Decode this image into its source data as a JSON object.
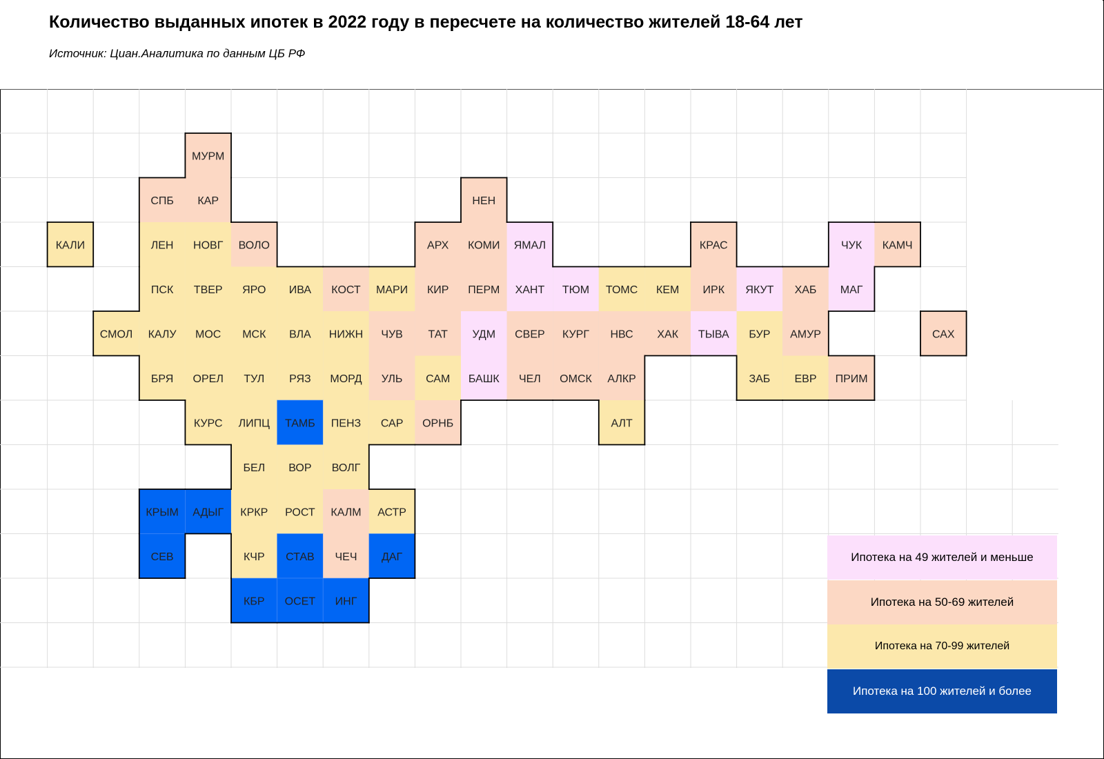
{
  "title": "Количество выданных ипотек в 2022 году в пересчете на количество жителей 18-64 лет",
  "source": "Источник: Циан.Аналитика по данным ЦБ РФ",
  "colors": {
    "lt50": "#fce0fc",
    "c50_69": "#fcd8c4",
    "c70_99": "#fce8ac",
    "ge100": "#0066f4",
    "legend_ge100": "#0b4aa8",
    "grid": "#dddddd",
    "border": "#000000"
  },
  "legend": [
    {
      "label": "Ипотека  на 49 жителей и меньше",
      "category": "lt50"
    },
    {
      "label": "Ипотека на 50-69 жителей",
      "category": "c50_69"
    },
    {
      "label": "Ипотека на 70-99 жителей",
      "category": "c70_99"
    },
    {
      "label": "Ипотека на 100 жителей и более",
      "category": "ge100"
    }
  ],
  "regions": [
    {
      "label": "МУРМ",
      "row": 0,
      "col": 4,
      "category": "c50_69"
    },
    {
      "label": "СПБ",
      "row": 1,
      "col": 3,
      "category": "c50_69"
    },
    {
      "label": "КАР",
      "row": 1,
      "col": 4,
      "category": "c50_69"
    },
    {
      "label": "НЕН",
      "row": 1,
      "col": 10,
      "category": "c50_69"
    },
    {
      "label": "КАЛИ",
      "row": 2,
      "col": 1,
      "category": "c70_99"
    },
    {
      "label": "ЛЕН",
      "row": 2,
      "col": 3,
      "category": "c70_99"
    },
    {
      "label": "НОВГ",
      "row": 2,
      "col": 4,
      "category": "c70_99"
    },
    {
      "label": "ВОЛО",
      "row": 2,
      "col": 5,
      "category": "c50_69"
    },
    {
      "label": "АРХ",
      "row": 2,
      "col": 9,
      "category": "c50_69"
    },
    {
      "label": "КОМИ",
      "row": 2,
      "col": 10,
      "category": "c50_69"
    },
    {
      "label": "ЯМАЛ",
      "row": 2,
      "col": 11,
      "category": "lt50"
    },
    {
      "label": "КРАС",
      "row": 2,
      "col": 15,
      "category": "c50_69"
    },
    {
      "label": "ЧУК",
      "row": 2,
      "col": 18,
      "category": "lt50"
    },
    {
      "label": "КАМЧ",
      "row": 2,
      "col": 19,
      "category": "c50_69"
    },
    {
      "label": "ПСК",
      "row": 3,
      "col": 3,
      "category": "c70_99"
    },
    {
      "label": "ТВЕР",
      "row": 3,
      "col": 4,
      "category": "c70_99"
    },
    {
      "label": "ЯРО",
      "row": 3,
      "col": 5,
      "category": "c70_99"
    },
    {
      "label": "ИВА",
      "row": 3,
      "col": 6,
      "category": "c70_99"
    },
    {
      "label": "КОСТ",
      "row": 3,
      "col": 7,
      "category": "c50_69"
    },
    {
      "label": "МАРИ",
      "row": 3,
      "col": 8,
      "category": "c70_99"
    },
    {
      "label": "КИР",
      "row": 3,
      "col": 9,
      "category": "c50_69"
    },
    {
      "label": "ПЕРМ",
      "row": 3,
      "col": 10,
      "category": "c50_69"
    },
    {
      "label": "ХАНТ",
      "row": 3,
      "col": 11,
      "category": "lt50"
    },
    {
      "label": "ТЮМ",
      "row": 3,
      "col": 12,
      "category": "lt50"
    },
    {
      "label": "ТОМС",
      "row": 3,
      "col": 13,
      "category": "c70_99"
    },
    {
      "label": "КЕМ",
      "row": 3,
      "col": 14,
      "category": "c70_99"
    },
    {
      "label": "ИРК",
      "row": 3,
      "col": 15,
      "category": "c50_69"
    },
    {
      "label": "ЯКУТ",
      "row": 3,
      "col": 16,
      "category": "lt50"
    },
    {
      "label": "ХАБ",
      "row": 3,
      "col": 17,
      "category": "c50_69"
    },
    {
      "label": "МАГ",
      "row": 3,
      "col": 18,
      "category": "lt50"
    },
    {
      "label": "СМОЛ",
      "row": 4,
      "col": 2,
      "category": "c70_99"
    },
    {
      "label": "КАЛУ",
      "row": 4,
      "col": 3,
      "category": "c70_99"
    },
    {
      "label": "МОС",
      "row": 4,
      "col": 4,
      "category": "c70_99"
    },
    {
      "label": "МСК",
      "row": 4,
      "col": 5,
      "category": "c70_99"
    },
    {
      "label": "ВЛА",
      "row": 4,
      "col": 6,
      "category": "c70_99"
    },
    {
      "label": "НИЖН",
      "row": 4,
      "col": 7,
      "category": "c70_99"
    },
    {
      "label": "ЧУВ",
      "row": 4,
      "col": 8,
      "category": "c50_69"
    },
    {
      "label": "ТАТ",
      "row": 4,
      "col": 9,
      "category": "c50_69"
    },
    {
      "label": "УДМ",
      "row": 4,
      "col": 10,
      "category": "lt50"
    },
    {
      "label": "СВЕР",
      "row": 4,
      "col": 11,
      "category": "c50_69"
    },
    {
      "label": "КУРГ",
      "row": 4,
      "col": 12,
      "category": "c50_69"
    },
    {
      "label": "НВС",
      "row": 4,
      "col": 13,
      "category": "c50_69"
    },
    {
      "label": "ХАК",
      "row": 4,
      "col": 14,
      "category": "c50_69"
    },
    {
      "label": "ТЫВА",
      "row": 4,
      "col": 15,
      "category": "lt50"
    },
    {
      "label": "БУР",
      "row": 4,
      "col": 16,
      "category": "c70_99"
    },
    {
      "label": "АМУР",
      "row": 4,
      "col": 17,
      "category": "c50_69"
    },
    {
      "label": "САХ",
      "row": 4,
      "col": 20,
      "category": "c50_69"
    },
    {
      "label": "БРЯ",
      "row": 5,
      "col": 3,
      "category": "c70_99"
    },
    {
      "label": "ОРЕЛ",
      "row": 5,
      "col": 4,
      "category": "c70_99"
    },
    {
      "label": "ТУЛ",
      "row": 5,
      "col": 5,
      "category": "c70_99"
    },
    {
      "label": "РЯЗ",
      "row": 5,
      "col": 6,
      "category": "c70_99"
    },
    {
      "label": "МОРД",
      "row": 5,
      "col": 7,
      "category": "c70_99"
    },
    {
      "label": "УЛЬ",
      "row": 5,
      "col": 8,
      "category": "c50_69"
    },
    {
      "label": "САМ",
      "row": 5,
      "col": 9,
      "category": "c70_99"
    },
    {
      "label": "БАШК",
      "row": 5,
      "col": 10,
      "category": "lt50"
    },
    {
      "label": "ЧЕЛ",
      "row": 5,
      "col": 11,
      "category": "c50_69"
    },
    {
      "label": "ОМСК",
      "row": 5,
      "col": 12,
      "category": "c50_69"
    },
    {
      "label": "АЛКР",
      "row": 5,
      "col": 13,
      "category": "c50_69"
    },
    {
      "label": "ЗАБ",
      "row": 5,
      "col": 16,
      "category": "c70_99"
    },
    {
      "label": "ЕВР",
      "row": 5,
      "col": 17,
      "category": "c70_99"
    },
    {
      "label": "ПРИМ",
      "row": 5,
      "col": 18,
      "category": "c50_69"
    },
    {
      "label": "КУРС",
      "row": 6,
      "col": 4,
      "category": "c70_99"
    },
    {
      "label": "ЛИПЦ",
      "row": 6,
      "col": 5,
      "category": "c70_99"
    },
    {
      "label": "ТАМБ",
      "row": 6,
      "col": 6,
      "category": "ge100"
    },
    {
      "label": "ПЕНЗ",
      "row": 6,
      "col": 7,
      "category": "c70_99"
    },
    {
      "label": "САР",
      "row": 6,
      "col": 8,
      "category": "c70_99"
    },
    {
      "label": "ОРНБ",
      "row": 6,
      "col": 9,
      "category": "c50_69"
    },
    {
      "label": "АЛТ",
      "row": 6,
      "col": 13,
      "category": "c70_99"
    },
    {
      "label": "БЕЛ",
      "row": 7,
      "col": 5,
      "category": "c70_99"
    },
    {
      "label": "ВОР",
      "row": 7,
      "col": 6,
      "category": "c70_99"
    },
    {
      "label": "ВОЛГ",
      "row": 7,
      "col": 7,
      "category": "c70_99"
    },
    {
      "label": "КРЫМ",
      "row": 8,
      "col": 3,
      "category": "ge100"
    },
    {
      "label": "АДЫГ",
      "row": 8,
      "col": 4,
      "category": "ge100"
    },
    {
      "label": "КРКР",
      "row": 8,
      "col": 5,
      "category": "c70_99"
    },
    {
      "label": "РОСТ",
      "row": 8,
      "col": 6,
      "category": "c70_99"
    },
    {
      "label": "КАЛМ",
      "row": 8,
      "col": 7,
      "category": "c50_69"
    },
    {
      "label": "АСТР",
      "row": 8,
      "col": 8,
      "category": "c70_99"
    },
    {
      "label": "СЕВ",
      "row": 9,
      "col": 3,
      "category": "ge100"
    },
    {
      "label": "КЧР",
      "row": 9,
      "col": 5,
      "category": "c70_99"
    },
    {
      "label": "СТАВ",
      "row": 9,
      "col": 6,
      "category": "ge100"
    },
    {
      "label": "ЧЕЧ",
      "row": 9,
      "col": 7,
      "category": "c50_69"
    },
    {
      "label": "ДАГ",
      "row": 9,
      "col": 8,
      "category": "ge100"
    },
    {
      "label": "КБР",
      "row": 10,
      "col": 5,
      "category": "ge100"
    },
    {
      "label": "ОСЕТ",
      "row": 10,
      "col": 6,
      "category": "ge100"
    },
    {
      "label": "ИНГ",
      "row": 10,
      "col": 7,
      "category": "ge100"
    }
  ]
}
